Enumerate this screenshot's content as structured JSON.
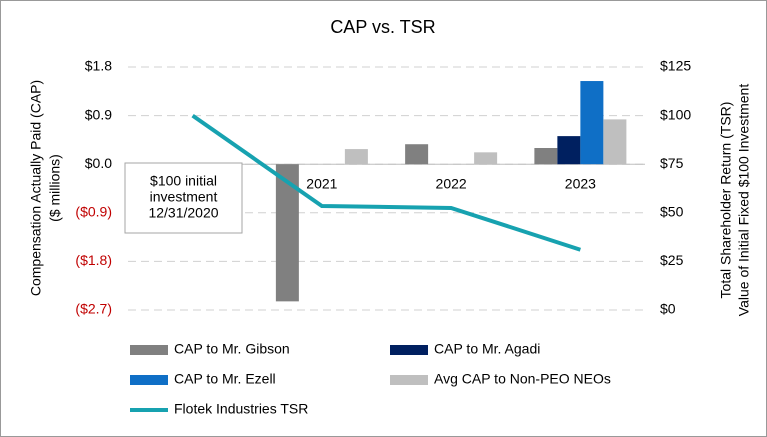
{
  "chart_data": {
    "type": "bar",
    "title": "CAP vs. TSR",
    "y_label": [
      "Compensation  Actually Paid (CAP)",
      "($ millions)"
    ],
    "y2_label": [
      "Total  Shareholder Return (TSR)",
      "Value of Initial Fixed $100 Investment"
    ],
    "categories": [
      null,
      "2021",
      "2022",
      "2023"
    ],
    "ylim": [
      -2.7,
      1.8
    ],
    "yticks": [
      {
        "value": 1.8,
        "label": "$1.8"
      },
      {
        "value": 0.9,
        "label": "$0.9"
      },
      {
        "value": 0,
        "label": "$0.0"
      },
      {
        "value": -0.9,
        "label": "($0.9)"
      },
      {
        "value": -1.8,
        "label": "($1.8)"
      },
      {
        "value": -2.7,
        "label": "($2.7)"
      }
    ],
    "y2lim": [
      0,
      125
    ],
    "y2ticks": [
      {
        "value": 125,
        "label": "$125"
      },
      {
        "value": 100,
        "label": "$100"
      },
      {
        "value": 75,
        "label": "$75"
      },
      {
        "value": 50,
        "label": "$50"
      },
      {
        "value": 25,
        "label": "$25"
      },
      {
        "value": 0,
        "label": "$0"
      }
    ],
    "grid": true,
    "legend": "bottom",
    "annotation": [
      "$100 initial",
      "investment",
      "12/31/2020"
    ],
    "series": [
      {
        "name": "CAP to Mr. Gibson",
        "color": "#808080",
        "values": [
          null,
          -2.54,
          0.37,
          0.3
        ]
      },
      {
        "name": "CAP to Mr. Agadi",
        "color": "#002060",
        "values": [
          null,
          null,
          null,
          0.52
        ]
      },
      {
        "name": "CAP to Mr. Ezell",
        "color": "#0f6fc6",
        "values": [
          null,
          null,
          null,
          1.54
        ]
      },
      {
        "name": "Avg CAP to Non-PEO NEOs",
        "color": "#bfbfbf",
        "values": [
          null,
          0.28,
          0.22,
          0.83
        ]
      },
      {
        "name": "Flotek Industries TSR",
        "color": "#17a2b0",
        "type": "line",
        "axis": "y2",
        "values": [
          100,
          53.5,
          52.5,
          31
        ]
      }
    ]
  }
}
